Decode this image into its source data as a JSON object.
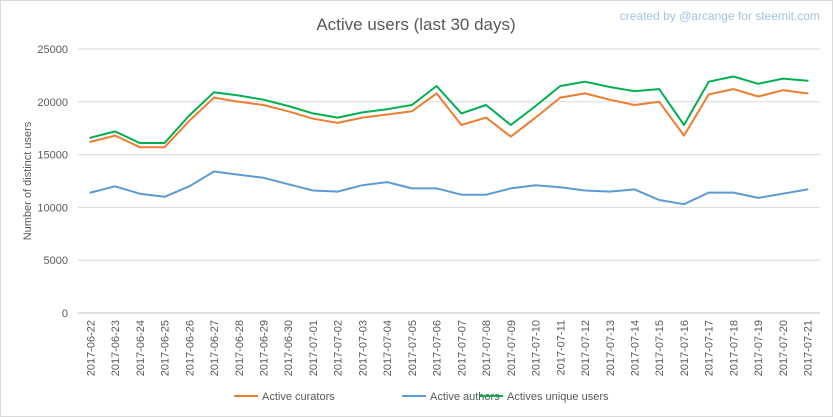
{
  "chart_data": {
    "type": "line",
    "title": "Active users (last 30 days)",
    "credit": "created by @arcange for steemit.com",
    "xlabel": "",
    "ylabel": "Number of distinct users",
    "ylim": [
      0,
      25000
    ],
    "yticks": [
      0,
      5000,
      10000,
      15000,
      20000,
      25000
    ],
    "grid": true,
    "legend_position": "bottom",
    "x": [
      "2017-06-22",
      "2017-06-23",
      "2017-06-24",
      "2017-06-25",
      "2017-06-26",
      "2017-06-27",
      "2017-06-28",
      "2017-06-29",
      "2017-06-30",
      "2017-07-01",
      "2017-07-02",
      "2017-07-03",
      "2017-07-04",
      "2017-07-05",
      "2017-07-06",
      "2017-07-07",
      "2017-07-08",
      "2017-07-09",
      "2017-07-10",
      "2017-07-11",
      "2017-07-12",
      "2017-07-13",
      "2017-07-14",
      "2017-07-15",
      "2017-07-16",
      "2017-07-17",
      "2017-07-18",
      "2017-07-19",
      "2017-07-20",
      "2017-07-21"
    ],
    "series": [
      {
        "name": "Active curators",
        "color": "#ed7d31",
        "values": [
          16200,
          16800,
          15700,
          15700,
          18200,
          20400,
          20000,
          19700,
          19100,
          18400,
          18000,
          18500,
          18800,
          19100,
          20800,
          17800,
          18500,
          16700,
          18500,
          20400,
          20800,
          20200,
          19700,
          20000,
          16800,
          20700,
          21200,
          20500,
          21100,
          20800
        ]
      },
      {
        "name": "Active authors",
        "color": "#5b9bd5",
        "values": [
          11400,
          12000,
          11300,
          11000,
          12000,
          13400,
          13100,
          12800,
          12200,
          11600,
          11500,
          12100,
          12400,
          11800,
          11800,
          11200,
          11200,
          11800,
          12100,
          11900,
          11600,
          11500,
          11700,
          10700,
          10300,
          11400,
          11400,
          10900,
          11300,
          11700
        ]
      },
      {
        "name": "Actives unique users",
        "color": "#00b050",
        "values": [
          16600,
          17200,
          16100,
          16100,
          18700,
          20900,
          20600,
          20200,
          19600,
          18900,
          18500,
          19000,
          19300,
          19700,
          21500,
          18900,
          19700,
          17800,
          19600,
          21500,
          21900,
          21400,
          21000,
          21200,
          17800,
          21900,
          22400,
          21700,
          22200,
          22000
        ]
      }
    ]
  }
}
